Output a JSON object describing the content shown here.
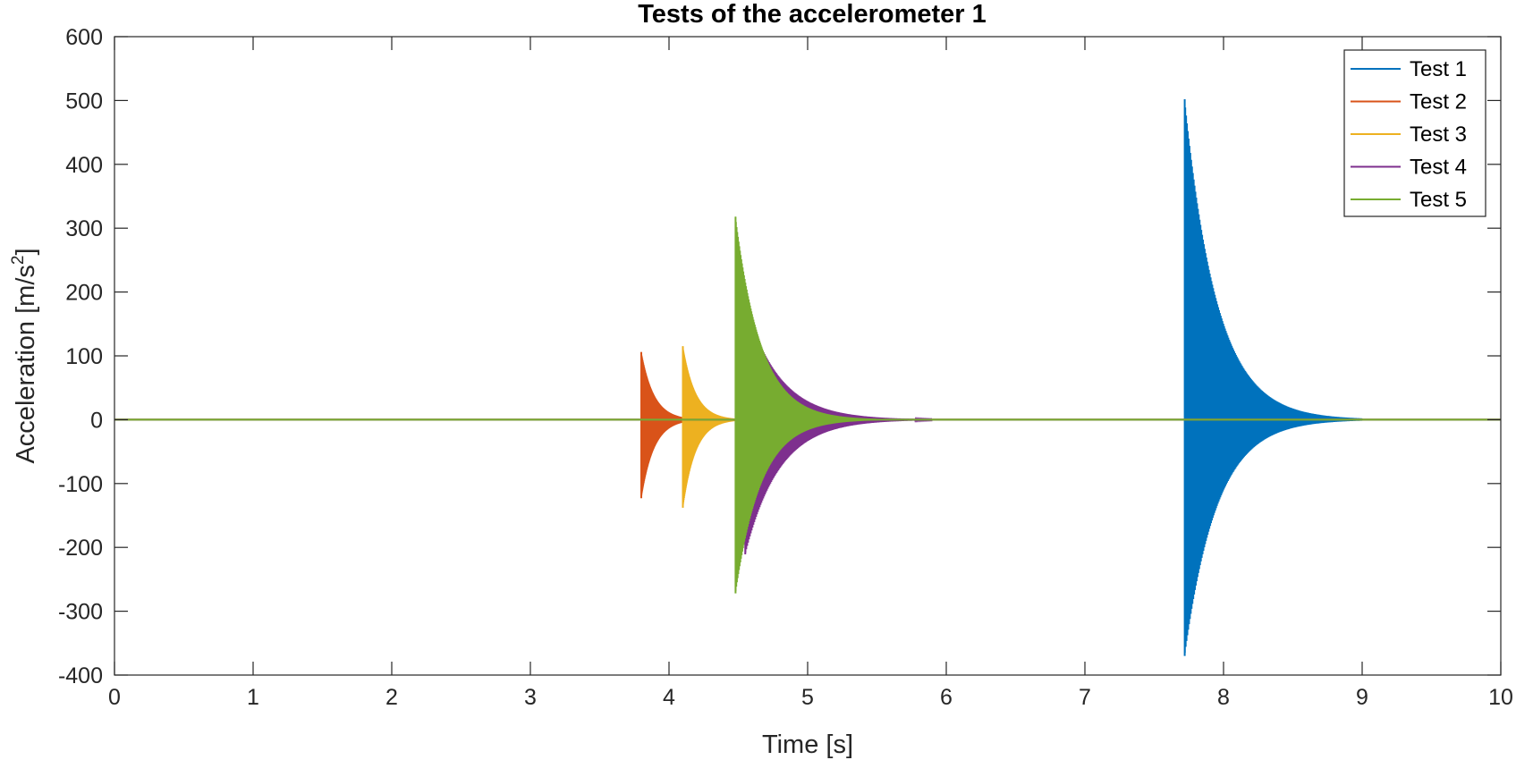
{
  "chart_data": {
    "type": "line",
    "title": "Tests of the accelerometer 1",
    "xlabel": "Time [s]",
    "ylabel": "Acceleration [m/s",
    "ylabel_sup": "2",
    "ylabel_end": "]",
    "xlim": [
      0,
      10
    ],
    "ylim": [
      -400,
      600
    ],
    "xticks": [
      0,
      1,
      2,
      3,
      4,
      5,
      6,
      7,
      8,
      9,
      10
    ],
    "yticks": [
      -400,
      -300,
      -200,
      -100,
      0,
      100,
      200,
      300,
      400,
      500,
      600
    ],
    "grid": false,
    "legend_position": "top-right",
    "series": [
      {
        "name": "Test 1",
        "color": "#0072BD",
        "impact_time": 7.72,
        "peak_max": 502,
        "peak_min": -370,
        "decay_end": 9.0
      },
      {
        "name": "Test 2",
        "color": "#D95319",
        "impact_time": 3.8,
        "peak_max": 106,
        "peak_min": -123,
        "decay_end": 4.3
      },
      {
        "name": "Test 3",
        "color": "#EDB120",
        "impact_time": 4.1,
        "peak_max": 115,
        "peak_min": -138,
        "decay_end": 4.6
      },
      {
        "name": "Test 4",
        "color": "#7E2F8E",
        "impact_time": 4.55,
        "peak_max": 183,
        "peak_min": -211,
        "decay_end": 5.9
      },
      {
        "name": "Test 5",
        "color": "#77AC30",
        "impact_time": 4.48,
        "peak_max": 318,
        "peak_min": -272,
        "decay_end": 5.5
      }
    ]
  }
}
